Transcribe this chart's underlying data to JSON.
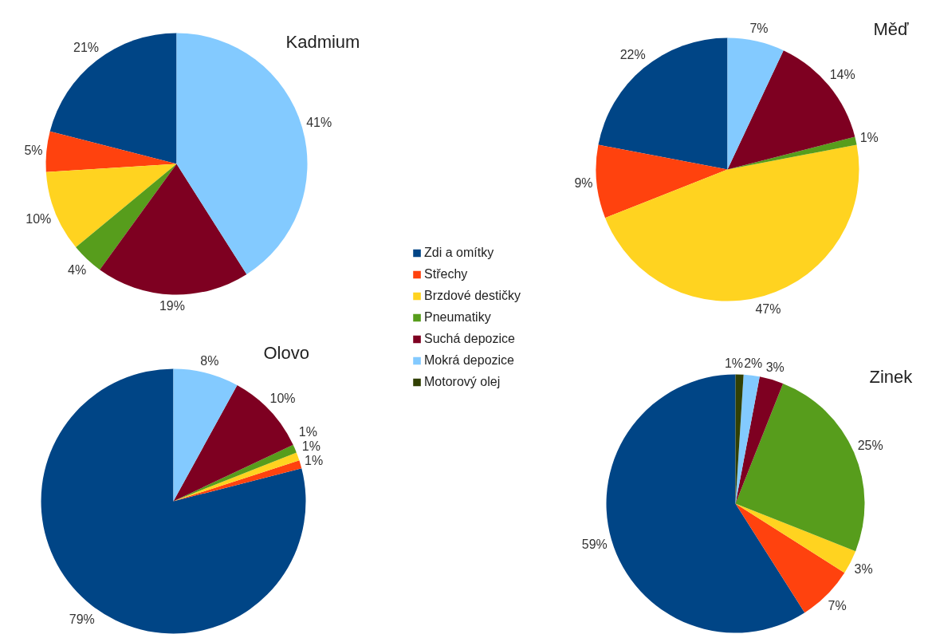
{
  "chart_data": {
    "type": "pie",
    "categories": [
      "Zdi a omítky",
      "Střechy",
      "Brzdové destičky",
      "Pneumatiky",
      "Suchá depozice",
      "Mokrá depozice",
      "Motorový olej"
    ],
    "colors": [
      "#004586",
      "#ff420e",
      "#ffd320",
      "#579d1c",
      "#7e0021",
      "#83caff",
      "#314004"
    ],
    "series": [
      {
        "name": "Kadmium",
        "values": [
          21,
          5,
          10,
          4,
          19,
          41,
          null
        ],
        "value_labels": [
          "21%",
          "5%",
          "10%",
          "4%",
          "19%",
          "41%",
          null
        ]
      },
      {
        "name": "Měď",
        "values": [
          22,
          9,
          47,
          1,
          14,
          7,
          null
        ],
        "value_labels": [
          "22%",
          "9%",
          "47%",
          "1%",
          "14%",
          "7%",
          null
        ]
      },
      {
        "name": "Olovo",
        "values": [
          79,
          1,
          1,
          1,
          10,
          8,
          null
        ],
        "value_labels": [
          "79%",
          "1%",
          "1%",
          "1%",
          "10%",
          "8%",
          null
        ]
      },
      {
        "name": "Zinek",
        "values": [
          59,
          7,
          3,
          25,
          3,
          2,
          1
        ],
        "value_labels": [
          "59%",
          "7%",
          "3%",
          "25%",
          "3%",
          "2%",
          "1%"
        ]
      }
    ],
    "legend": "center"
  }
}
